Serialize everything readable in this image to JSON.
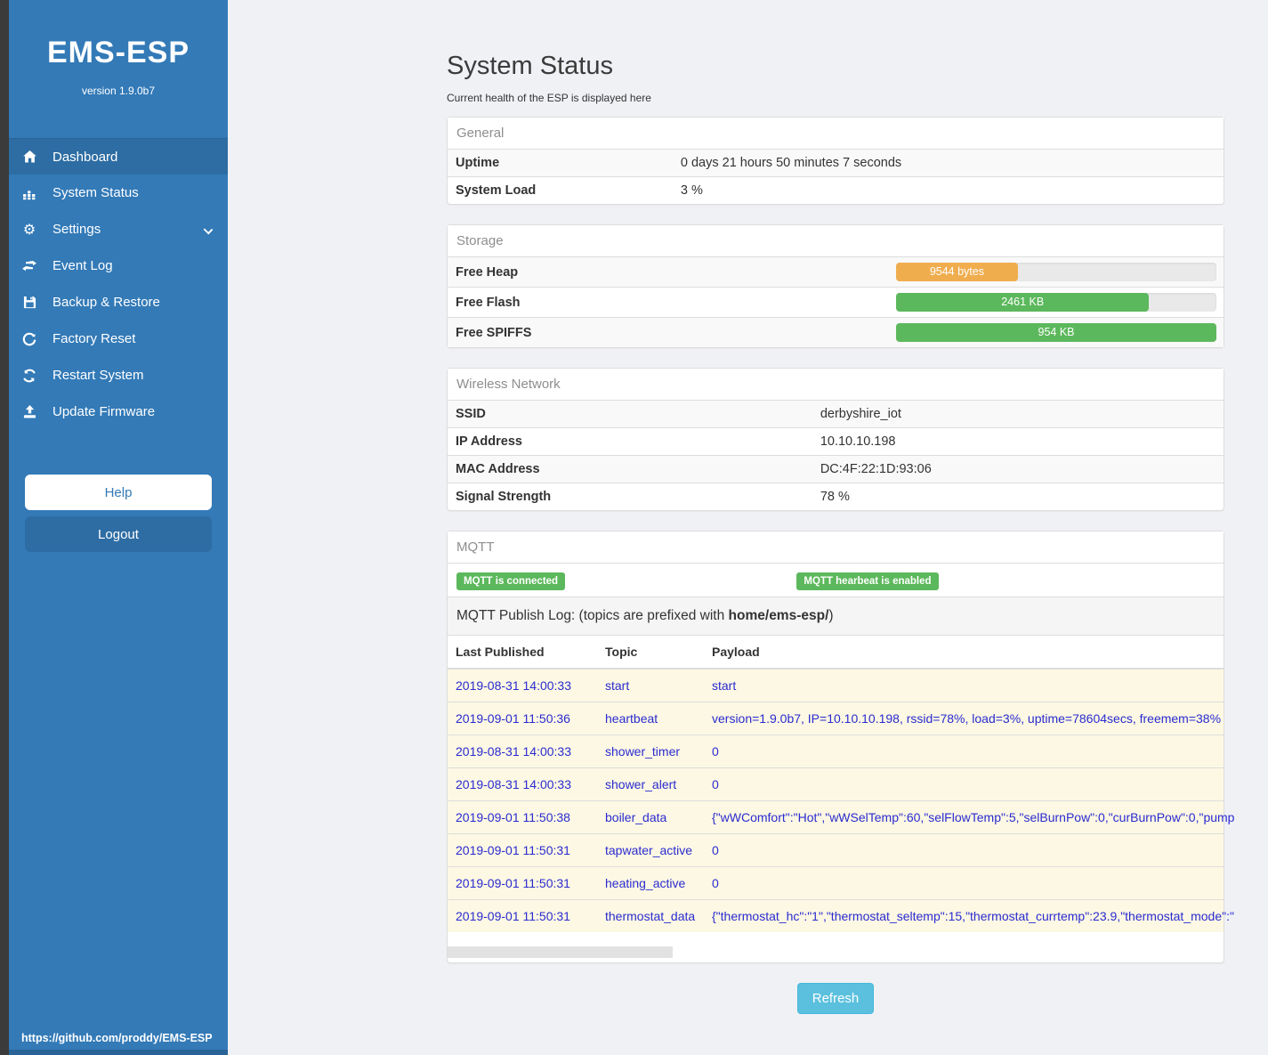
{
  "colors": {
    "sidebar_blue": "#337ab7",
    "sidebar_active": "#2d6da3",
    "badge_green": "#5cb85c",
    "bar_orange": "#f0ad4e",
    "bar_green": "#5cb85c",
    "refresh_blue": "#5bc0de",
    "log_text_blue": "#2b2bd0"
  },
  "sidebar": {
    "title": "EMS-ESP",
    "version": "version 1.9.0b7",
    "nav": [
      {
        "label": "Dashboard",
        "icon": "home-icon"
      },
      {
        "label": "System Status",
        "icon": "system-status-icon"
      },
      {
        "label": "Settings",
        "icon": "gear-icon"
      },
      {
        "label": "Event Log",
        "icon": "event-log-icon"
      },
      {
        "label": "Backup & Restore",
        "icon": "save-icon"
      },
      {
        "label": "Factory Reset",
        "icon": "factory-reset-icon"
      },
      {
        "label": "Restart System",
        "icon": "restart-icon"
      },
      {
        "label": "Update Firmware",
        "icon": "upload-icon"
      }
    ],
    "help_label": "Help",
    "logout_label": "Logout",
    "footer_link": "https://github.com/proddy/EMS-ESP"
  },
  "header": {
    "title": "System Status",
    "subtitle": "Current health of the ESP is displayed here"
  },
  "panels": {
    "general": {
      "title": "General",
      "rows": [
        {
          "label": "Uptime",
          "value": "0 days 21 hours 50 minutes 7 seconds"
        },
        {
          "label": "System Load",
          "value": "3 %"
        }
      ]
    },
    "storage": {
      "title": "Storage",
      "rows": [
        {
          "label": "Free Heap",
          "value": "9544 bytes",
          "percent": 38,
          "color": "#f0ad4e"
        },
        {
          "label": "Free Flash",
          "value": "2461 KB",
          "percent": 79,
          "color": "#5cb85c"
        },
        {
          "label": "Free SPIFFS",
          "value": "954 KB",
          "percent": 100,
          "color": "#5cb85c"
        }
      ]
    },
    "wireless": {
      "title": "Wireless Network",
      "rows": [
        {
          "label": "SSID",
          "value": "derbyshire_iot"
        },
        {
          "label": "IP Address",
          "value": "10.10.10.198"
        },
        {
          "label": "MAC Address",
          "value": "DC:4F:22:1D:93:06"
        },
        {
          "label": "Signal Strength",
          "value": "78 %"
        }
      ]
    },
    "mqtt": {
      "title": "MQTT",
      "badges": [
        "MQTT is connected",
        "MQTT hearbeat is enabled"
      ],
      "log_header": {
        "prefix": "MQTT Publish Log: (topics are prefixed with ",
        "bold": "home/ems-esp/",
        "suffix": ")"
      },
      "table": {
        "headers": [
          "Last Published",
          "Topic",
          "Payload"
        ],
        "rows": [
          [
            "2019-08-31 14:00:33",
            "start",
            "start"
          ],
          [
            "2019-09-01 11:50:36",
            "heartbeat",
            "version=1.9.0b7, IP=10.10.10.198, rssid=78%, load=3%, uptime=78604secs, freemem=38%"
          ],
          [
            "2019-08-31 14:00:33",
            "shower_timer",
            "0"
          ],
          [
            "2019-08-31 14:00:33",
            "shower_alert",
            "0"
          ],
          [
            "2019-09-01 11:50:38",
            "boiler_data",
            "{\"wWComfort\":\"Hot\",\"wWSelTemp\":60,\"selFlowTemp\":5,\"selBurnPow\":0,\"curBurnPow\":0,\"pump"
          ],
          [
            "2019-09-01 11:50:31",
            "tapwater_active",
            "0"
          ],
          [
            "2019-09-01 11:50:31",
            "heating_active",
            "0"
          ],
          [
            "2019-09-01 11:50:31",
            "thermostat_data",
            "{\"thermostat_hc\":\"1\",\"thermostat_seltemp\":15,\"thermostat_currtemp\":23.9,\"thermostat_mode\":\""
          ]
        ]
      }
    }
  },
  "refresh_label": "Refresh"
}
